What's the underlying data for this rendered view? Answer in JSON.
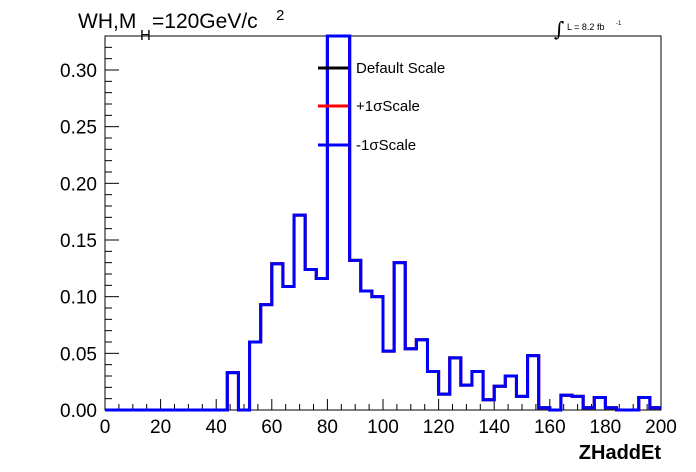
{
  "chart_data": {
    "type": "line",
    "title_main": "WH,M",
    "title_sub": "H",
    "title_rest": "=120GeV/c",
    "title_sup": "2",
    "lumi_text": "L = 8.2 fb",
    "lumi_sup": "-1",
    "lumi_integral": "∫",
    "xlabel": "ZHaddEt",
    "ylabel": "",
    "xlim": [
      0,
      200
    ],
    "ylim": [
      0,
      0.33
    ],
    "x_ticks": [
      "0",
      "20",
      "40",
      "60",
      "80",
      "100",
      "120",
      "140",
      "160",
      "180",
      "200"
    ],
    "y_ticks": [
      "0.00",
      "0.05",
      "0.10",
      "0.15",
      "0.20",
      "0.25",
      "0.30"
    ],
    "bin_width": 4,
    "bin_edges_start": 0,
    "legend_position": "top-center",
    "series": [
      {
        "name": "Default Scale",
        "color": "#000000",
        "values": [
          0,
          0,
          0,
          0,
          0,
          0,
          0,
          0,
          0,
          0,
          0,
          0.033,
          0,
          0.06,
          0.093,
          0.129,
          0.109,
          0.172,
          0.124,
          0.116,
          0.33,
          0.33,
          0.132,
          0.105,
          0.1,
          0.052,
          0.13,
          0.054,
          0.062,
          0.034,
          0.014,
          0.046,
          0.022,
          0.034,
          0.009,
          0.021,
          0.03,
          0.012,
          0.048,
          0.002,
          0,
          0.013,
          0.012,
          0.002,
          0.011,
          0.002,
          0,
          0,
          0.011,
          0.002
        ]
      },
      {
        "name": "+1σScale",
        "color": "#ff0000",
        "values": [
          0,
          0,
          0,
          0,
          0,
          0,
          0,
          0,
          0,
          0,
          0,
          0.033,
          0,
          0.06,
          0.093,
          0.129,
          0.109,
          0.172,
          0.124,
          0.116,
          0.33,
          0.33,
          0.132,
          0.105,
          0.1,
          0.052,
          0.13,
          0.054,
          0.062,
          0.034,
          0.014,
          0.046,
          0.022,
          0.034,
          0.009,
          0.021,
          0.03,
          0.012,
          0.048,
          0.002,
          0,
          0.013,
          0.012,
          0.002,
          0.011,
          0.002,
          0,
          0,
          0.011,
          0.002
        ]
      },
      {
        "name": "-1σScale",
        "color": "#0000ff",
        "values": [
          0,
          0,
          0,
          0,
          0,
          0,
          0,
          0,
          0,
          0,
          0,
          0.033,
          0,
          0.06,
          0.093,
          0.129,
          0.109,
          0.172,
          0.124,
          0.116,
          0.33,
          0.33,
          0.132,
          0.105,
          0.1,
          0.052,
          0.13,
          0.054,
          0.062,
          0.034,
          0.014,
          0.046,
          0.022,
          0.034,
          0.009,
          0.021,
          0.03,
          0.012,
          0.048,
          0.002,
          0,
          0.013,
          0.012,
          0.002,
          0.011,
          0.002,
          0,
          0,
          0.011,
          0.002
        ]
      }
    ]
  }
}
